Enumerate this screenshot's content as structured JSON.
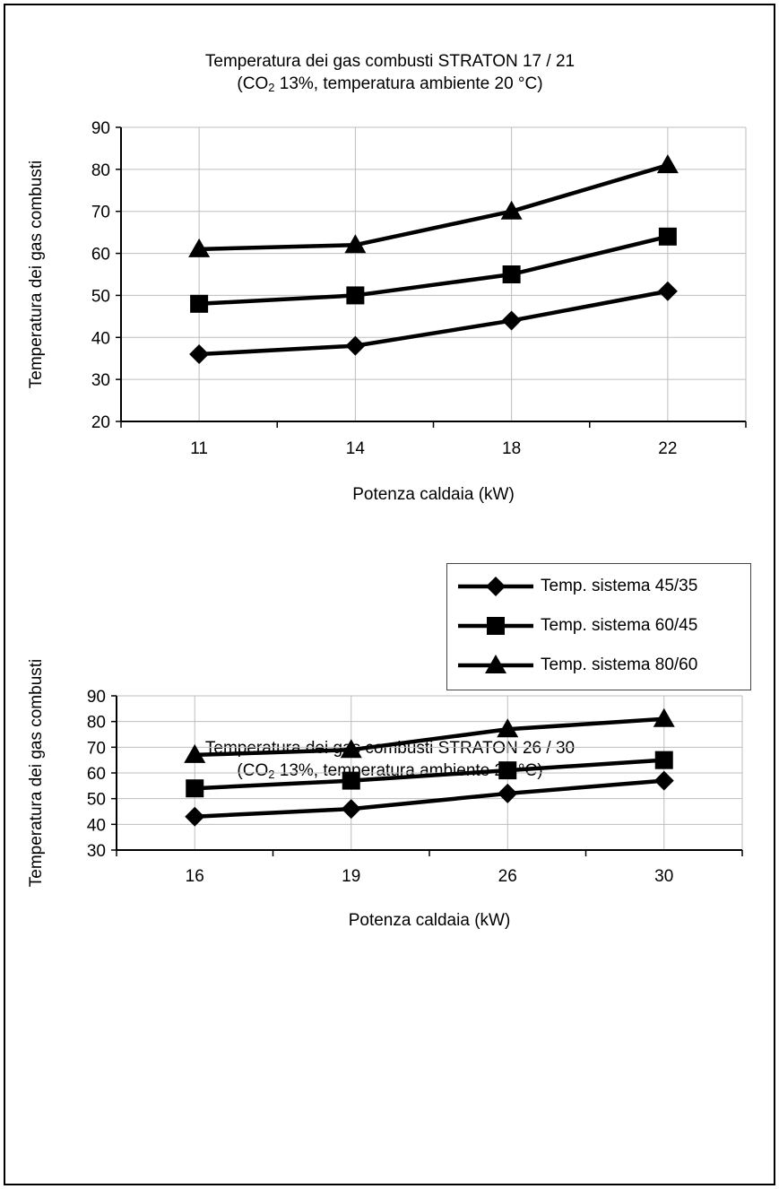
{
  "chart_data": [
    {
      "type": "line",
      "title": "Temperatura dei gas combusti STRATON 17 / 21",
      "subtitle_prefix": "(CO",
      "subtitle_sub": "2",
      "subtitle_suffix": " 13%, temperatura ambiente 20 °C)",
      "xlabel": "Potenza caldaia (kW)",
      "ylabel": "Temperatura dei gas combusti",
      "categories": [
        "11",
        "14",
        "18",
        "22"
      ],
      "ylim": [
        20,
        90
      ],
      "yticks": [
        20,
        30,
        40,
        50,
        60,
        70,
        80,
        90
      ],
      "grid": true,
      "series": [
        {
          "name": "Temp. sistema 45/35",
          "marker": "diamond",
          "values": [
            36,
            38,
            44,
            51
          ]
        },
        {
          "name": "Temp. sistema 60/45",
          "marker": "square",
          "values": [
            48,
            50,
            55,
            64
          ]
        },
        {
          "name": "Temp. sistema 80/60",
          "marker": "triangle",
          "values": [
            61,
            62,
            70,
            81
          ]
        }
      ]
    },
    {
      "type": "line",
      "title": "Temperatura dei gas combusti STRATON 26 / 30",
      "subtitle_prefix": "(CO",
      "subtitle_sub": "2",
      "subtitle_suffix": " 13%, temperatura ambiente 20 °C)",
      "xlabel": "Potenza caldaia (kW)",
      "ylabel": "Temperatura dei gas combusti",
      "categories": [
        "16",
        "19",
        "26",
        "30"
      ],
      "ylim": [
        30,
        90
      ],
      "yticks": [
        30,
        40,
        50,
        60,
        70,
        80,
        90
      ],
      "grid": true,
      "series": [
        {
          "name": "Temp. sistema 45/35",
          "marker": "diamond",
          "values": [
            43,
            46,
            52,
            57
          ]
        },
        {
          "name": "Temp. sistema 60/45",
          "marker": "square",
          "values": [
            54,
            57,
            61,
            65
          ]
        },
        {
          "name": "Temp. sistema 80/60",
          "marker": "triangle",
          "values": [
            67,
            69,
            77,
            81
          ]
        }
      ]
    }
  ],
  "legend": {
    "placement": "between charts, right",
    "items": [
      {
        "label": "Temp. sistema 45/35",
        "marker": "diamond"
      },
      {
        "label": "Temp. sistema 60/45",
        "marker": "square"
      },
      {
        "label": "Temp. sistema 80/60",
        "marker": "triangle"
      }
    ]
  },
  "colors": {
    "line": "#000000",
    "grid": "#bdbdbd",
    "axis": "#000000"
  }
}
